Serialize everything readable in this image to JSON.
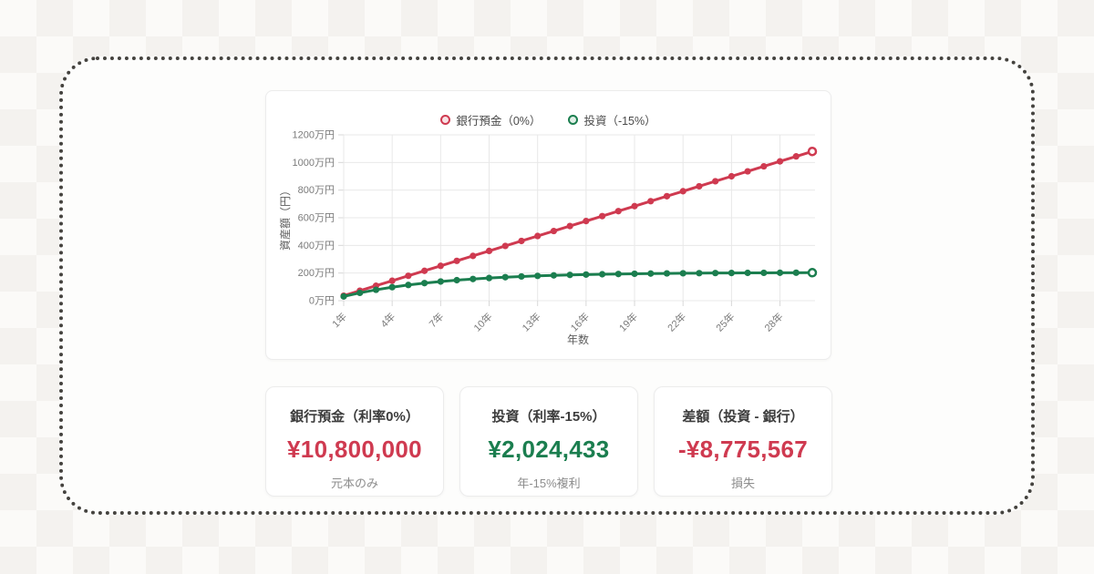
{
  "chart_data": {
    "type": "line",
    "title": "",
    "xlabel": "年数",
    "ylabel": "資産額（円）",
    "xlim": [
      1,
      30
    ],
    "ylim": [
      0,
      1200
    ],
    "grid": true,
    "legend_position": "top",
    "x_years": [
      1,
      2,
      3,
      4,
      5,
      6,
      7,
      8,
      9,
      10,
      11,
      12,
      13,
      14,
      15,
      16,
      17,
      18,
      19,
      20,
      21,
      22,
      23,
      24,
      25,
      26,
      27,
      28,
      29,
      30
    ],
    "x_ticks": [
      {
        "value": 1,
        "label": "1年"
      },
      {
        "value": 4,
        "label": "4年"
      },
      {
        "value": 7,
        "label": "7年"
      },
      {
        "value": 10,
        "label": "10年"
      },
      {
        "value": 13,
        "label": "13年"
      },
      {
        "value": 16,
        "label": "16年"
      },
      {
        "value": 19,
        "label": "19年"
      },
      {
        "value": 22,
        "label": "22年"
      },
      {
        "value": 25,
        "label": "25年"
      },
      {
        "value": 28,
        "label": "28年"
      }
    ],
    "y_ticks": [
      {
        "value": 0,
        "label": "0万円"
      },
      {
        "value": 200,
        "label": "200万円"
      },
      {
        "value": 400,
        "label": "400万円"
      },
      {
        "value": 600,
        "label": "600万円"
      },
      {
        "value": 800,
        "label": "800万円"
      },
      {
        "value": 1000,
        "label": "1000万円"
      },
      {
        "value": 1200,
        "label": "1200万円"
      }
    ],
    "legend": [
      {
        "label": "銀行預金（0%）",
        "color": "#cf3a50",
        "fill": "#f8e2e5"
      },
      {
        "label": "投資（-15%）",
        "color": "#1b7e4f",
        "fill": "#e1efe7"
      }
    ],
    "series": [
      {
        "name": "銀行預金（0%）",
        "color": "#cf3a50",
        "values_man_yen": [
          36,
          72,
          108,
          144,
          180,
          216,
          252,
          288,
          324,
          360,
          396,
          432,
          468,
          504,
          540,
          576,
          612,
          648,
          684,
          720,
          756,
          792,
          828,
          864,
          900,
          936,
          972,
          1008,
          1044,
          1080
        ]
      },
      {
        "name": "投資（-15%）",
        "color": "#1b7e4f",
        "values_man_yen": [
          30.6,
          56.6,
          78.7,
          97.5,
          113.5,
          127.1,
          138.6,
          148.4,
          156.8,
          163.8,
          169.9,
          175.0,
          179.3,
          183.0,
          186.2,
          188.9,
          191.1,
          193.1,
          194.7,
          196.1,
          197.3,
          198.3,
          199.1,
          199.9,
          200.5,
          201.0,
          201.5,
          201.9,
          202.2,
          202.4
        ]
      }
    ]
  },
  "cards": [
    {
      "title": "銀行預金（利率0%）",
      "value": "¥10,800,000",
      "note": "元本のみ",
      "value_color": "#cf3a50"
    },
    {
      "title": "投資（利率-15%）",
      "value": "¥2,024,433",
      "note": "年-15%複利",
      "value_color": "#1b7e4f"
    },
    {
      "title": "差額（投資 - 銀行）",
      "value": "-¥8,775,567",
      "note": "損失",
      "value_color": "#cf3a50"
    }
  ]
}
